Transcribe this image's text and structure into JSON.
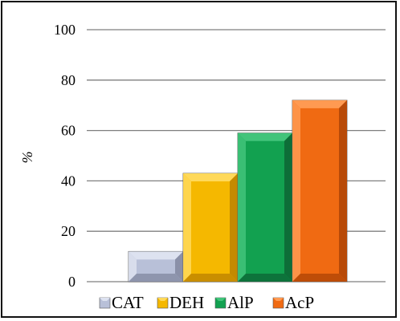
{
  "chart_data": {
    "type": "bar",
    "categories": [
      "CAT",
      "DEH",
      "AlP",
      "AcP"
    ],
    "values": [
      12,
      43,
      59,
      72
    ],
    "ylabel": "%",
    "ylim": [
      0,
      100
    ],
    "yticks": [
      "0",
      "20",
      "40",
      "60",
      "80",
      "100"
    ],
    "grid": true,
    "legend": "bottom",
    "colors": [
      "#b8c0d8",
      "#f5b800",
      "#12a150",
      "#f06a12"
    ],
    "dark_colors": [
      "#8a90a8",
      "#c48a00",
      "#0d6e38",
      "#b84a08"
    ],
    "light_colors": [
      "#dde2f0",
      "#ffd95a",
      "#42c47a",
      "#ff9a52"
    ]
  }
}
